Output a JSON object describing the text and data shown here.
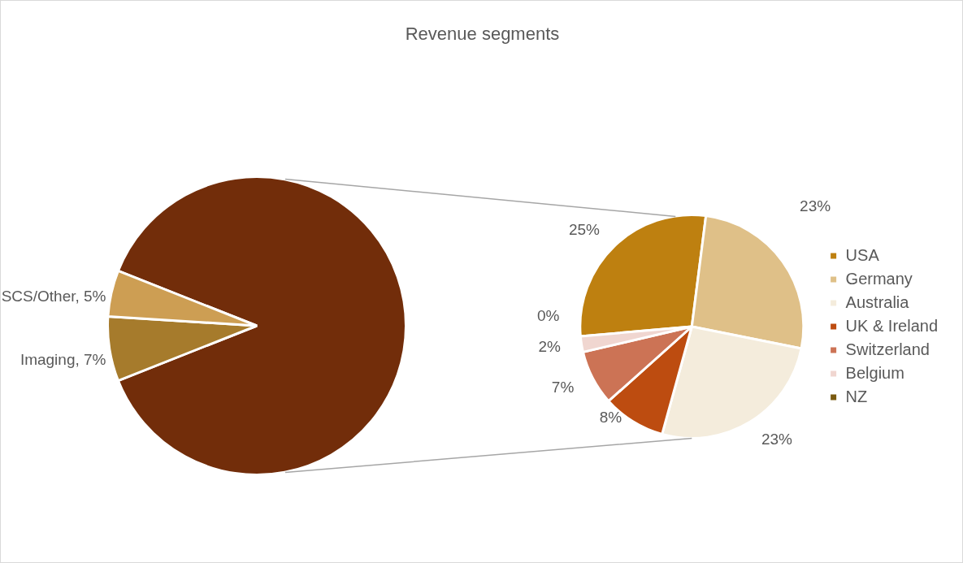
{
  "chart_data": [
    {
      "type": "pie",
      "title": "Revenue segments",
      "categories": [
        null,
        "Imaging",
        "SCS/Other"
      ],
      "values": [
        88,
        7,
        5
      ],
      "colors": [
        "#722d0a",
        "#a67b2c",
        "#cd9e53"
      ],
      "value_labels": [
        null,
        "7%",
        "5%"
      ],
      "legend": false
    },
    {
      "type": "pie",
      "categories": [
        "USA",
        "Germany",
        "Australia",
        "UK & Ireland",
        "Switzerland",
        "Belgium",
        "NZ"
      ],
      "values": [
        25,
        23,
        23,
        8,
        7,
        2,
        0
      ],
      "colors": [
        "#be8010",
        "#dfc088",
        "#f4ecdc",
        "#bd4c10",
        "#cc7355",
        "#f0d6d0",
        "#7a5a10"
      ],
      "value_labels": [
        "25%",
        "23%",
        "23%",
        "8%",
        "7%",
        "2%",
        "0%"
      ],
      "legend": "right"
    }
  ]
}
